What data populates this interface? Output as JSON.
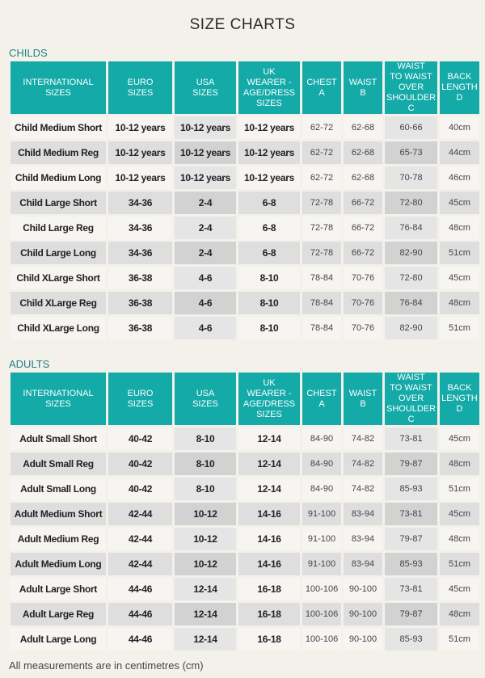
{
  "title": "SIZE CHARTS",
  "headers": {
    "international": [
      "INTERNATIONAL",
      "SIZES"
    ],
    "euro": [
      "EURO",
      "SIZES"
    ],
    "usa": [
      "USA",
      "SIZES"
    ],
    "uk": [
      "UK",
      "WEARER -",
      "AGE/DRESS",
      "SIZES"
    ],
    "chest": [
      "CHEST",
      "A"
    ],
    "waist": [
      "WAIST",
      "B"
    ],
    "waist_to_waist": [
      "WAIST",
      "TO WAIST",
      "OVER",
      "SHOULDER",
      "C"
    ],
    "back_length": [
      "BACK",
      "LENGTH",
      "D"
    ]
  },
  "childs": {
    "label": "CHILDS",
    "rows": [
      [
        "Child Medium Short",
        "10-12 years",
        "10-12 years",
        "10-12 years",
        "62-72",
        "62-68",
        "60-66",
        "40cm"
      ],
      [
        "Child Medium Reg",
        "10-12 years",
        "10-12 years",
        "10-12 years",
        "62-72",
        "62-68",
        "65-73",
        "44cm"
      ],
      [
        "Child Medium Long",
        "10-12 years",
        "10-12 years",
        "10-12 years",
        "62-72",
        "62-68",
        "70-78",
        "46cm"
      ],
      [
        "Child Large Short",
        "34-36",
        "2-4",
        "6-8",
        "72-78",
        "66-72",
        "72-80",
        "45cm"
      ],
      [
        "Child Large Reg",
        "34-36",
        "2-4",
        "6-8",
        "72-78",
        "66-72",
        "76-84",
        "48cm"
      ],
      [
        "Child Large Long",
        "34-36",
        "2-4",
        "6-8",
        "72-78",
        "66-72",
        "82-90",
        "51cm"
      ],
      [
        "Child XLarge Short",
        "36-38",
        "4-6",
        "8-10",
        "78-84",
        "70-76",
        "72-80",
        "45cm"
      ],
      [
        "Child XLarge Reg",
        "36-38",
        "4-6",
        "8-10",
        "78-84",
        "70-76",
        "76-84",
        "48cm"
      ],
      [
        "Child XLarge Long",
        "36-38",
        "4-6",
        "8-10",
        "78-84",
        "70-76",
        "82-90",
        "51cm"
      ]
    ]
  },
  "adults": {
    "label": "ADULTS",
    "rows": [
      [
        "Adult Small Short",
        "40-42",
        "8-10",
        "12-14",
        "84-90",
        "74-82",
        "73-81",
        "45cm"
      ],
      [
        "Adult Small Reg",
        "40-42",
        "8-10",
        "12-14",
        "84-90",
        "74-82",
        "79-87",
        "48cm"
      ],
      [
        "Adult Small Long",
        "40-42",
        "8-10",
        "12-14",
        "84-90",
        "74-82",
        "85-93",
        "51cm"
      ],
      [
        "Adult Medium Short",
        "42-44",
        "10-12",
        "14-16",
        "91-100",
        "83-94",
        "73-81",
        "45cm"
      ],
      [
        "Adult Medium Reg",
        "42-44",
        "10-12",
        "14-16",
        "91-100",
        "83-94",
        "79-87",
        "48cm"
      ],
      [
        "Adult Medium Long",
        "42-44",
        "10-12",
        "14-16",
        "91-100",
        "83-94",
        "85-93",
        "51cm"
      ],
      [
        "Adult Large Short",
        "44-46",
        "12-14",
        "16-18",
        "100-106",
        "90-100",
        "73-81",
        "45cm"
      ],
      [
        "Adult Large Reg",
        "44-46",
        "12-14",
        "16-18",
        "100-106",
        "90-100",
        "79-87",
        "48cm"
      ],
      [
        "Adult Large Long",
        "44-46",
        "12-14",
        "16-18",
        "100-106",
        "90-100",
        "85-93",
        "51cm"
      ]
    ]
  },
  "footnote": "All measurements are in centimetres (cm)",
  "colors": {
    "header_teal": "#13aaa8",
    "section_label": "#1f7f86"
  }
}
